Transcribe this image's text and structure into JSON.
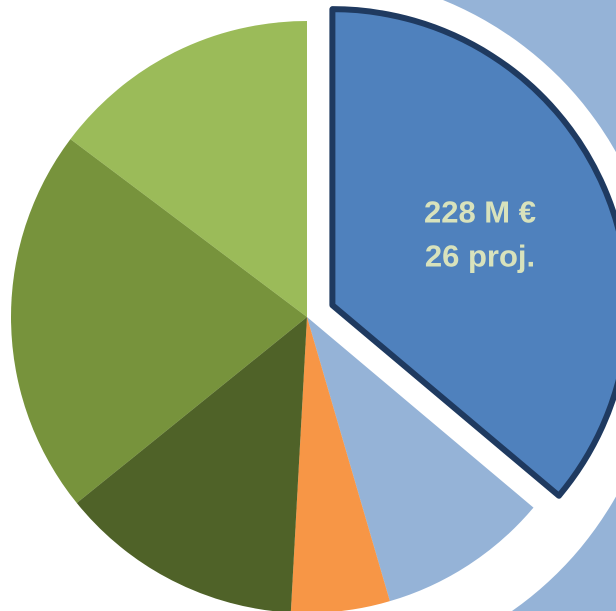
{
  "chart_data": {
    "type": "pie",
    "values": [
      228,
      59,
      34,
      84,
      133,
      93
    ],
    "value_labels": [
      "228 M €",
      null,
      null,
      null,
      null,
      null
    ],
    "project_labels": [
      "26 proj.",
      null,
      null,
      null,
      null,
      null
    ],
    "colors": [
      "#4f81bd",
      "#95b3d7",
      "#f79646",
      "#4f6228",
      "#77933c",
      "#9bbb59"
    ],
    "exploded": 0
  }
}
